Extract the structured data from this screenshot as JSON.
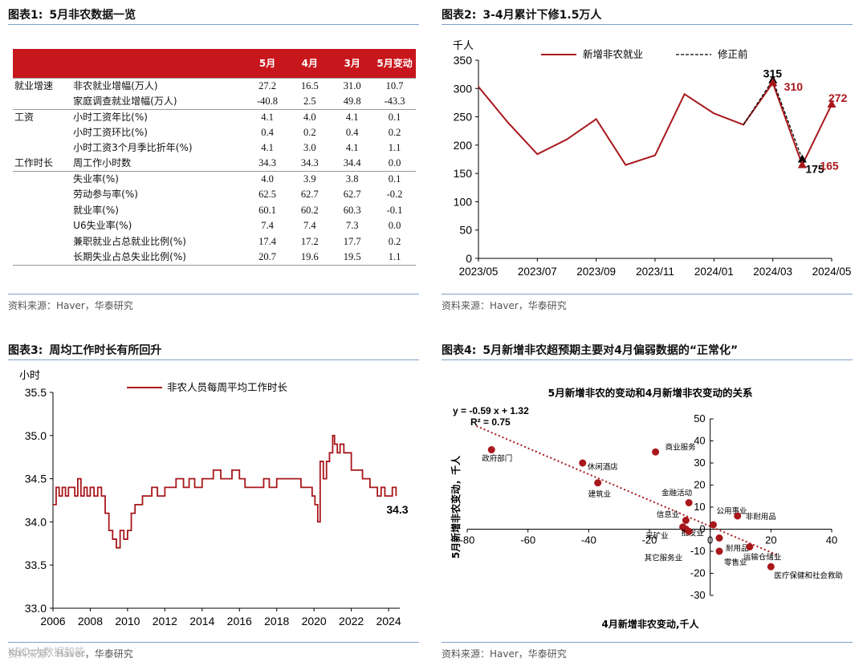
{
  "panels": {
    "p1": {
      "num": "图表1:",
      "title": "5月非农数据一览",
      "source": "资料来源：Haver，华泰研究"
    },
    "p2": {
      "num": "图表2:",
      "title": "3-4月累计下修1.5万人",
      "source": "资料来源：Haver，华泰研究"
    },
    "p3": {
      "num": "图表3:",
      "title": "周均工作时长有所回升",
      "source": "资料来源：Haver，华泰研究"
    },
    "p4": {
      "num": "图表4:",
      "title": "5月新增非农超预期主要对4月偏弱数据的“正常化”",
      "source": "资料来源：Haver，华泰研究"
    }
  },
  "watermark": "KEO 大数据智能",
  "colors": {
    "accent": "#c8161d",
    "rule": "#7da0c8",
    "line": "#a8171b"
  },
  "chart_data": [
    {
      "type": "table",
      "title": "5月非农数据一览",
      "headers": [
        "",
        "",
        "5月",
        "4月",
        "3月",
        "5月变动"
      ],
      "rows": [
        {
          "category": "就业增速",
          "indicator": "非农就业增幅(万人)",
          "values": [
            "27.2",
            "16.5",
            "31.0",
            "10.7"
          ],
          "group_start": true
        },
        {
          "category": "",
          "indicator": "家庭调查就业增幅(万人)",
          "values": [
            "-40.8",
            "2.5",
            "49.8",
            "-43.3"
          ]
        },
        {
          "category": "工资",
          "indicator": "小时工资年比(%)",
          "values": [
            "4.1",
            "4.0",
            "4.1",
            "0.1"
          ],
          "group_start": true
        },
        {
          "category": "",
          "indicator": "小时工资环比(%)",
          "values": [
            "0.4",
            "0.2",
            "0.4",
            "0.2"
          ]
        },
        {
          "category": "",
          "indicator": "小时工资3个月季比折年(%)",
          "values": [
            "4.1",
            "3.0",
            "4.1",
            "1.1"
          ]
        },
        {
          "category": "工作时长",
          "indicator": "周工作小时数",
          "values": [
            "34.3",
            "34.3",
            "34.4",
            "0.0"
          ]
        },
        {
          "category": "",
          "indicator": "失业率(%)",
          "values": [
            "4.0",
            "3.9",
            "3.8",
            "0.1"
          ],
          "group_start": true
        },
        {
          "category": "",
          "indicator": "劳动参与率(%)",
          "values": [
            "62.5",
            "62.7",
            "62.7",
            "-0.2"
          ]
        },
        {
          "category": "",
          "indicator": "就业率(%)",
          "values": [
            "60.1",
            "60.2",
            "60.3",
            "-0.1"
          ]
        },
        {
          "category": "",
          "indicator": "U6失业率(%)",
          "values": [
            "7.4",
            "7.4",
            "7.3",
            "0.0"
          ]
        },
        {
          "category": "",
          "indicator": "兼职就业占总就业比例(%)",
          "values": [
            "17.4",
            "17.2",
            "17.7",
            "0.2"
          ]
        },
        {
          "category": "",
          "indicator": "长期失业占总失业比例(%)",
          "values": [
            "20.7",
            "19.6",
            "19.5",
            "1.1"
          ]
        }
      ]
    },
    {
      "type": "line",
      "title": "3-4月累计下修1.5万人",
      "ylabel": "千人",
      "ylim": [
        0,
        350
      ],
      "yticks": [
        0,
        50,
        100,
        150,
        200,
        250,
        300,
        350
      ],
      "xtick_labels": [
        "2023/05",
        "2023/07",
        "2023/09",
        "2023/11",
        "2024/01",
        "2024/03",
        "2024/05"
      ],
      "x_months": [
        "2023/05",
        "2023/06",
        "2023/07",
        "2023/08",
        "2023/09",
        "2023/10",
        "2023/11",
        "2023/12",
        "2024/01",
        "2024/02",
        "2024/03",
        "2024/04",
        "2024/05"
      ],
      "series": [
        {
          "name": "新增非农就业",
          "values": [
            303,
            240,
            184,
            210,
            246,
            165,
            182,
            290,
            256,
            236,
            310,
            165,
            272
          ]
        },
        {
          "name": "修正前",
          "points": [
            [
              "2024/02",
              236
            ],
            [
              "2024/03",
              315
            ],
            [
              "2024/04",
              175
            ]
          ]
        }
      ],
      "annotations": [
        {
          "text": "315",
          "x": "2024/03",
          "y": 315,
          "series": "修正前"
        },
        {
          "text": "310",
          "x": "2024/03",
          "y": 310,
          "series": "新增非农就业"
        },
        {
          "text": "175",
          "x": "2024/04",
          "y": 175,
          "series": "修正前"
        },
        {
          "text": "165",
          "x": "2024/04",
          "y": 165,
          "series": "新增非农就业"
        },
        {
          "text": "272",
          "x": "2024/05",
          "y": 272,
          "series": "新增非农就业"
        }
      ]
    },
    {
      "type": "line",
      "title": "周均工作时长有所回升",
      "ylabel": "小时",
      "ylim": [
        33.0,
        35.5
      ],
      "yticks": [
        "33.0",
        "33.5",
        "34.0",
        "34.5",
        "35.0",
        "35.5"
      ],
      "xlim": [
        2006,
        2024.6
      ],
      "xticks": [
        2006,
        2008,
        2010,
        2012,
        2014,
        2016,
        2018,
        2020,
        2022,
        2024
      ],
      "series": [
        {
          "name": "非农人员每周平均工作时长",
          "points": [
            [
              2006.0,
              34.2
            ],
            [
              2006.17,
              34.4
            ],
            [
              2006.33,
              34.3
            ],
            [
              2006.5,
              34.4
            ],
            [
              2006.67,
              34.3
            ],
            [
              2006.83,
              34.4
            ],
            [
              2007.0,
              34.4
            ],
            [
              2007.17,
              34.3
            ],
            [
              2007.33,
              34.5
            ],
            [
              2007.5,
              34.3
            ],
            [
              2007.67,
              34.4
            ],
            [
              2007.83,
              34.3
            ],
            [
              2008.0,
              34.4
            ],
            [
              2008.2,
              34.3
            ],
            [
              2008.4,
              34.4
            ],
            [
              2008.6,
              34.3
            ],
            [
              2008.8,
              34.1
            ],
            [
              2009.0,
              33.9
            ],
            [
              2009.2,
              33.8
            ],
            [
              2009.4,
              33.7
            ],
            [
              2009.6,
              33.9
            ],
            [
              2009.8,
              33.8
            ],
            [
              2010.0,
              33.9
            ],
            [
              2010.2,
              34.1
            ],
            [
              2010.4,
              34.2
            ],
            [
              2010.6,
              34.2
            ],
            [
              2010.8,
              34.3
            ],
            [
              2011.0,
              34.3
            ],
            [
              2011.3,
              34.4
            ],
            [
              2011.6,
              34.3
            ],
            [
              2012.0,
              34.4
            ],
            [
              2012.3,
              34.4
            ],
            [
              2012.6,
              34.5
            ],
            [
              2013.0,
              34.4
            ],
            [
              2013.3,
              34.5
            ],
            [
              2013.6,
              34.4
            ],
            [
              2014.0,
              34.5
            ],
            [
              2014.3,
              34.5
            ],
            [
              2014.6,
              34.6
            ],
            [
              2015.0,
              34.5
            ],
            [
              2015.3,
              34.5
            ],
            [
              2015.6,
              34.6
            ],
            [
              2016.0,
              34.5
            ],
            [
              2016.3,
              34.4
            ],
            [
              2016.6,
              34.4
            ],
            [
              2017.0,
              34.4
            ],
            [
              2017.3,
              34.5
            ],
            [
              2017.6,
              34.4
            ],
            [
              2018.0,
              34.5
            ],
            [
              2018.3,
              34.5
            ],
            [
              2018.6,
              34.5
            ],
            [
              2019.0,
              34.5
            ],
            [
              2019.3,
              34.4
            ],
            [
              2019.6,
              34.4
            ],
            [
              2019.9,
              34.3
            ],
            [
              2020.05,
              34.2
            ],
            [
              2020.2,
              34.0
            ],
            [
              2020.33,
              34.7
            ],
            [
              2020.5,
              34.5
            ],
            [
              2020.67,
              34.7
            ],
            [
              2020.83,
              34.8
            ],
            [
              2021.0,
              35.0
            ],
            [
              2021.1,
              34.9
            ],
            [
              2021.25,
              34.8
            ],
            [
              2021.4,
              34.9
            ],
            [
              2021.6,
              34.8
            ],
            [
              2021.8,
              34.8
            ],
            [
              2022.0,
              34.6
            ],
            [
              2022.2,
              34.6
            ],
            [
              2022.4,
              34.6
            ],
            [
              2022.6,
              34.5
            ],
            [
              2022.8,
              34.5
            ],
            [
              2023.0,
              34.4
            ],
            [
              2023.2,
              34.4
            ],
            [
              2023.4,
              34.3
            ],
            [
              2023.6,
              34.4
            ],
            [
              2023.8,
              34.3
            ],
            [
              2024.0,
              34.3
            ],
            [
              2024.2,
              34.4
            ],
            [
              2024.4,
              34.3
            ]
          ]
        }
      ],
      "annotations": [
        {
          "text": "34.3",
          "x": 2024.4,
          "y": 34.3
        }
      ]
    },
    {
      "type": "scatter",
      "title": "5月新增非农的变动和4月新增非农变动的关系",
      "xlabel": "4月新增非农变动,千人",
      "ylabel": "5月新增非农变动，千人",
      "xlim": [
        -80,
        40
      ],
      "ylim": [
        -30,
        50
      ],
      "xticks": [
        -80,
        -60,
        -40,
        -20,
        0,
        20,
        40
      ],
      "yticks": [
        -30,
        -20,
        -10,
        0,
        10,
        20,
        30,
        40,
        50
      ],
      "equation": "y = -0.59 x + 1.32",
      "r_squared": "R² = 0.75",
      "trendline": {
        "slope": -0.59,
        "intercept": 1.32,
        "x_range": [
          -77,
          22
        ]
      },
      "points": [
        {
          "label": "政府部门",
          "x": -72,
          "y": 36
        },
        {
          "label": "休闲酒店",
          "x": -42,
          "y": 30
        },
        {
          "label": "商业服务",
          "x": -18,
          "y": 35
        },
        {
          "label": "建筑业",
          "x": -37,
          "y": 21
        },
        {
          "label": "金融活动",
          "x": -7,
          "y": 12
        },
        {
          "label": "公用事业",
          "x": 1,
          "y": 2
        },
        {
          "label": "非耐用品",
          "x": 9,
          "y": 6
        },
        {
          "label": "信息业",
          "x": -8,
          "y": 4
        },
        {
          "label": "采矿业",
          "x": -9,
          "y": 1
        },
        {
          "label": "批发业",
          "x": -8,
          "y": 0
        },
        {
          "label": "其它服务业",
          "x": -7,
          "y": -1
        },
        {
          "label": "耐用品",
          "x": 3,
          "y": -4
        },
        {
          "label": "零售业",
          "x": 3,
          "y": -10
        },
        {
          "label": "运输仓储业",
          "x": 13,
          "y": -8
        },
        {
          "label": "医疗保健和社会救助",
          "x": 20,
          "y": -17
        }
      ]
    }
  ]
}
